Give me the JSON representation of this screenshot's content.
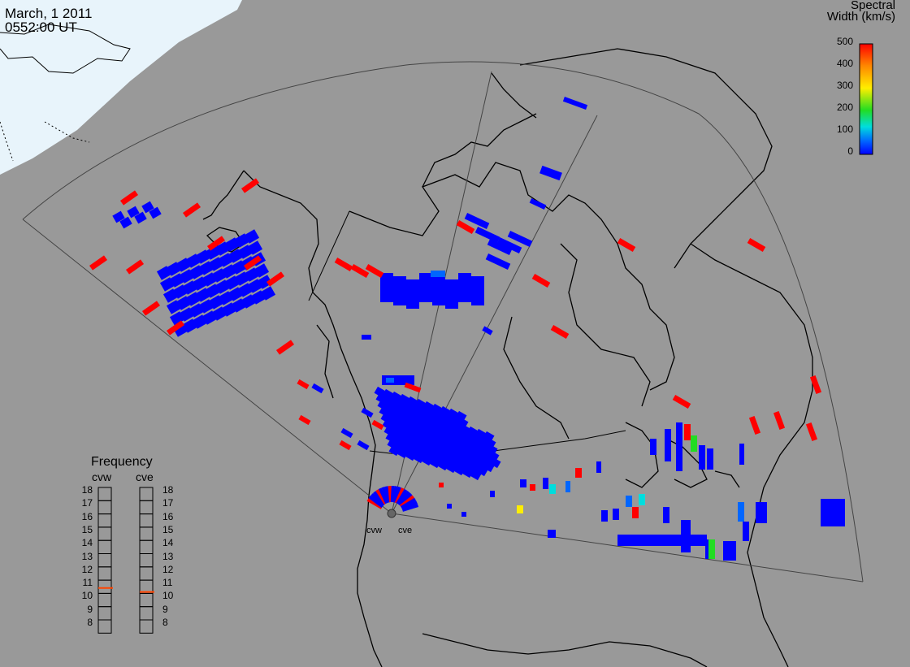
{
  "title": {
    "date": "March, 1 2011",
    "time": "0552:00 UT"
  },
  "colorbar": {
    "title_line1": "Spectral",
    "title_line2": "Width (km/s)",
    "ticks": [
      "500",
      "400",
      "300",
      "200",
      "100",
      "0"
    ],
    "colors": [
      "#ff0000",
      "#ff8800",
      "#ffee00",
      "#22dd22",
      "#00dddd",
      "#0066ff",
      "#0000ff"
    ]
  },
  "frequency": {
    "title": "Frequency",
    "radars": [
      {
        "name": "cvw",
        "value_mhz": 10.9
      },
      {
        "name": "cve",
        "value_mhz": 10.6
      }
    ],
    "ticks": [
      "18",
      "17",
      "16",
      "15",
      "14",
      "13",
      "12",
      "11",
      "10",
      "9",
      "8"
    ]
  },
  "radar_sites": [
    {
      "name": "cvw"
    },
    {
      "name": "cve"
    }
  ],
  "colors": {
    "background": "#999999",
    "ocean_day": "#e8f4fb",
    "fov_line": "#444444",
    "coast": "#000000",
    "low_width": "#0000ff",
    "high_width": "#ff0000",
    "freq_marker": "#ff4400"
  }
}
